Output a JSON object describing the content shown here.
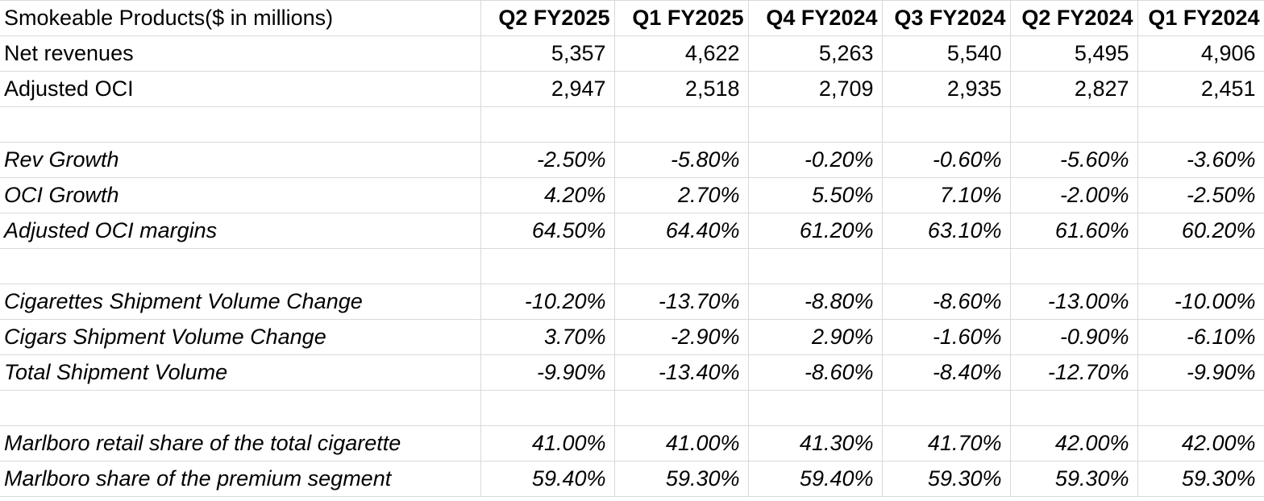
{
  "chart_data": {
    "type": "table",
    "header": {
      "label": "Smokeable Products($ in millions)",
      "columns": [
        "Q2 FY2025",
        "Q1 FY2025",
        "Q4 FY2024",
        "Q3 FY2024",
        "Q2 FY2024",
        "Q1 FY2024"
      ]
    },
    "rows": [
      {
        "label": "Net revenues",
        "style": "normal",
        "values": [
          "5,357",
          "4,622",
          "5,263",
          "5,540",
          "5,495",
          "4,906"
        ]
      },
      {
        "label": "Adjusted OCI",
        "style": "normal",
        "values": [
          "2,947",
          "2,518",
          "2,709",
          "2,935",
          "2,827",
          "2,451"
        ]
      },
      {
        "label": "",
        "style": "spacer",
        "values": [
          "",
          "",
          "",
          "",
          "",
          ""
        ]
      },
      {
        "label": "Rev Growth",
        "style": "italic",
        "values": [
          "-2.50%",
          "-5.80%",
          "-0.20%",
          "-0.60%",
          "-5.60%",
          "-3.60%"
        ]
      },
      {
        "label": "OCI Growth",
        "style": "italic",
        "values": [
          "4.20%",
          "2.70%",
          "5.50%",
          "7.10%",
          "-2.00%",
          "-2.50%"
        ]
      },
      {
        "label": "Adjusted OCI margins",
        "style": "italic",
        "values": [
          "64.50%",
          "64.40%",
          "61.20%",
          "63.10%",
          "61.60%",
          "60.20%"
        ]
      },
      {
        "label": "",
        "style": "spacer",
        "values": [
          "",
          "",
          "",
          "",
          "",
          ""
        ]
      },
      {
        "label": "Cigarettes Shipment Volume Change",
        "style": "italic",
        "values": [
          "-10.20%",
          "-13.70%",
          "-8.80%",
          "-8.60%",
          "-13.00%",
          "-10.00%"
        ]
      },
      {
        "label": "Cigars Shipment Volume Change",
        "style": "italic",
        "values": [
          "3.70%",
          "-2.90%",
          "2.90%",
          "-1.60%",
          "-0.90%",
          "-6.10%"
        ]
      },
      {
        "label": "Total Shipment Volume",
        "style": "italic",
        "values": [
          "-9.90%",
          "-13.40%",
          "-8.60%",
          "-8.40%",
          "-12.70%",
          "-9.90%"
        ]
      },
      {
        "label": "",
        "style": "spacer",
        "values": [
          "",
          "",
          "",
          "",
          "",
          ""
        ]
      },
      {
        "label": "Marlboro retail share of the total cigarette",
        "style": "italic",
        "values": [
          "41.00%",
          "41.00%",
          "41.30%",
          "41.70%",
          "42.00%",
          "42.00%"
        ]
      },
      {
        "label": "Marlboro share of the premium segment",
        "style": "italic",
        "values": [
          "59.40%",
          "59.30%",
          "59.40%",
          "59.30%",
          "59.30%",
          "59.30%"
        ]
      }
    ]
  }
}
